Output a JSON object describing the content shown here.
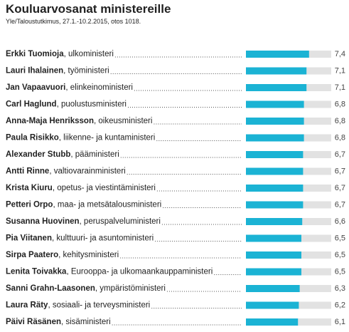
{
  "chart_data": {
    "type": "bar",
    "orientation": "horizontal",
    "title": "Kouluarvosanat ministereille",
    "subtitle": "Yle/Taloustutkimus, 27.1.-10.2.2015, otos 1018.",
    "categories": [
      "Erkki Tuomioja",
      "Lauri Ihalainen",
      "Jan Vapaavuori",
      "Carl Haglund",
      "Anna-Maja Henriksson",
      "Paula Risikko",
      "Alexander Stubb",
      "Antti Rinne",
      "Krista Kiuru",
      "Petteri Orpo",
      "Susanna Huovinen",
      "Pia Viitanen",
      "Sirpa Paatero",
      "Lenita Toivakka",
      "Sanni Grahn-Laasonen",
      "Laura Räty",
      "Päivi Räsänen"
    ],
    "roles": [
      ", ulkoministeri",
      ", työministeri",
      ", elinkeinoministeri",
      ", puolustusministeri",
      ", oikeusministeri",
      ", liikenne- ja kuntaministeri",
      ", pääministeri",
      ", valtiovarainministeri",
      ", opetus- ja viestintäministeri",
      ", maa- ja metsätalousministeri",
      ", peruspalveluministeri",
      ", kulttuuri- ja asuntoministeri",
      ", kehitysministeri",
      ", Eurooppa- ja ulkomaankauppaministeri",
      ", ympäristöministeri",
      ", sosiaali- ja terveysministeri",
      ", sisäministeri"
    ],
    "values": [
      7.4,
      7.1,
      7.1,
      6.8,
      6.8,
      6.8,
      6.7,
      6.7,
      6.7,
      6.7,
      6.6,
      6.5,
      6.5,
      6.5,
      6.3,
      6.2,
      6.1
    ],
    "value_labels": [
      "7,4",
      "7,1",
      "7,1",
      "6,8",
      "6,8",
      "6,8",
      "6,7",
      "6,7",
      "6,7",
      "6,7",
      "6,6",
      "6,5",
      "6,5",
      "6,5",
      "6,3",
      "6,2",
      "6,1"
    ],
    "xlim": [
      0,
      10
    ],
    "color": "#1bb3d4",
    "track_color": "#e2e2e2"
  }
}
